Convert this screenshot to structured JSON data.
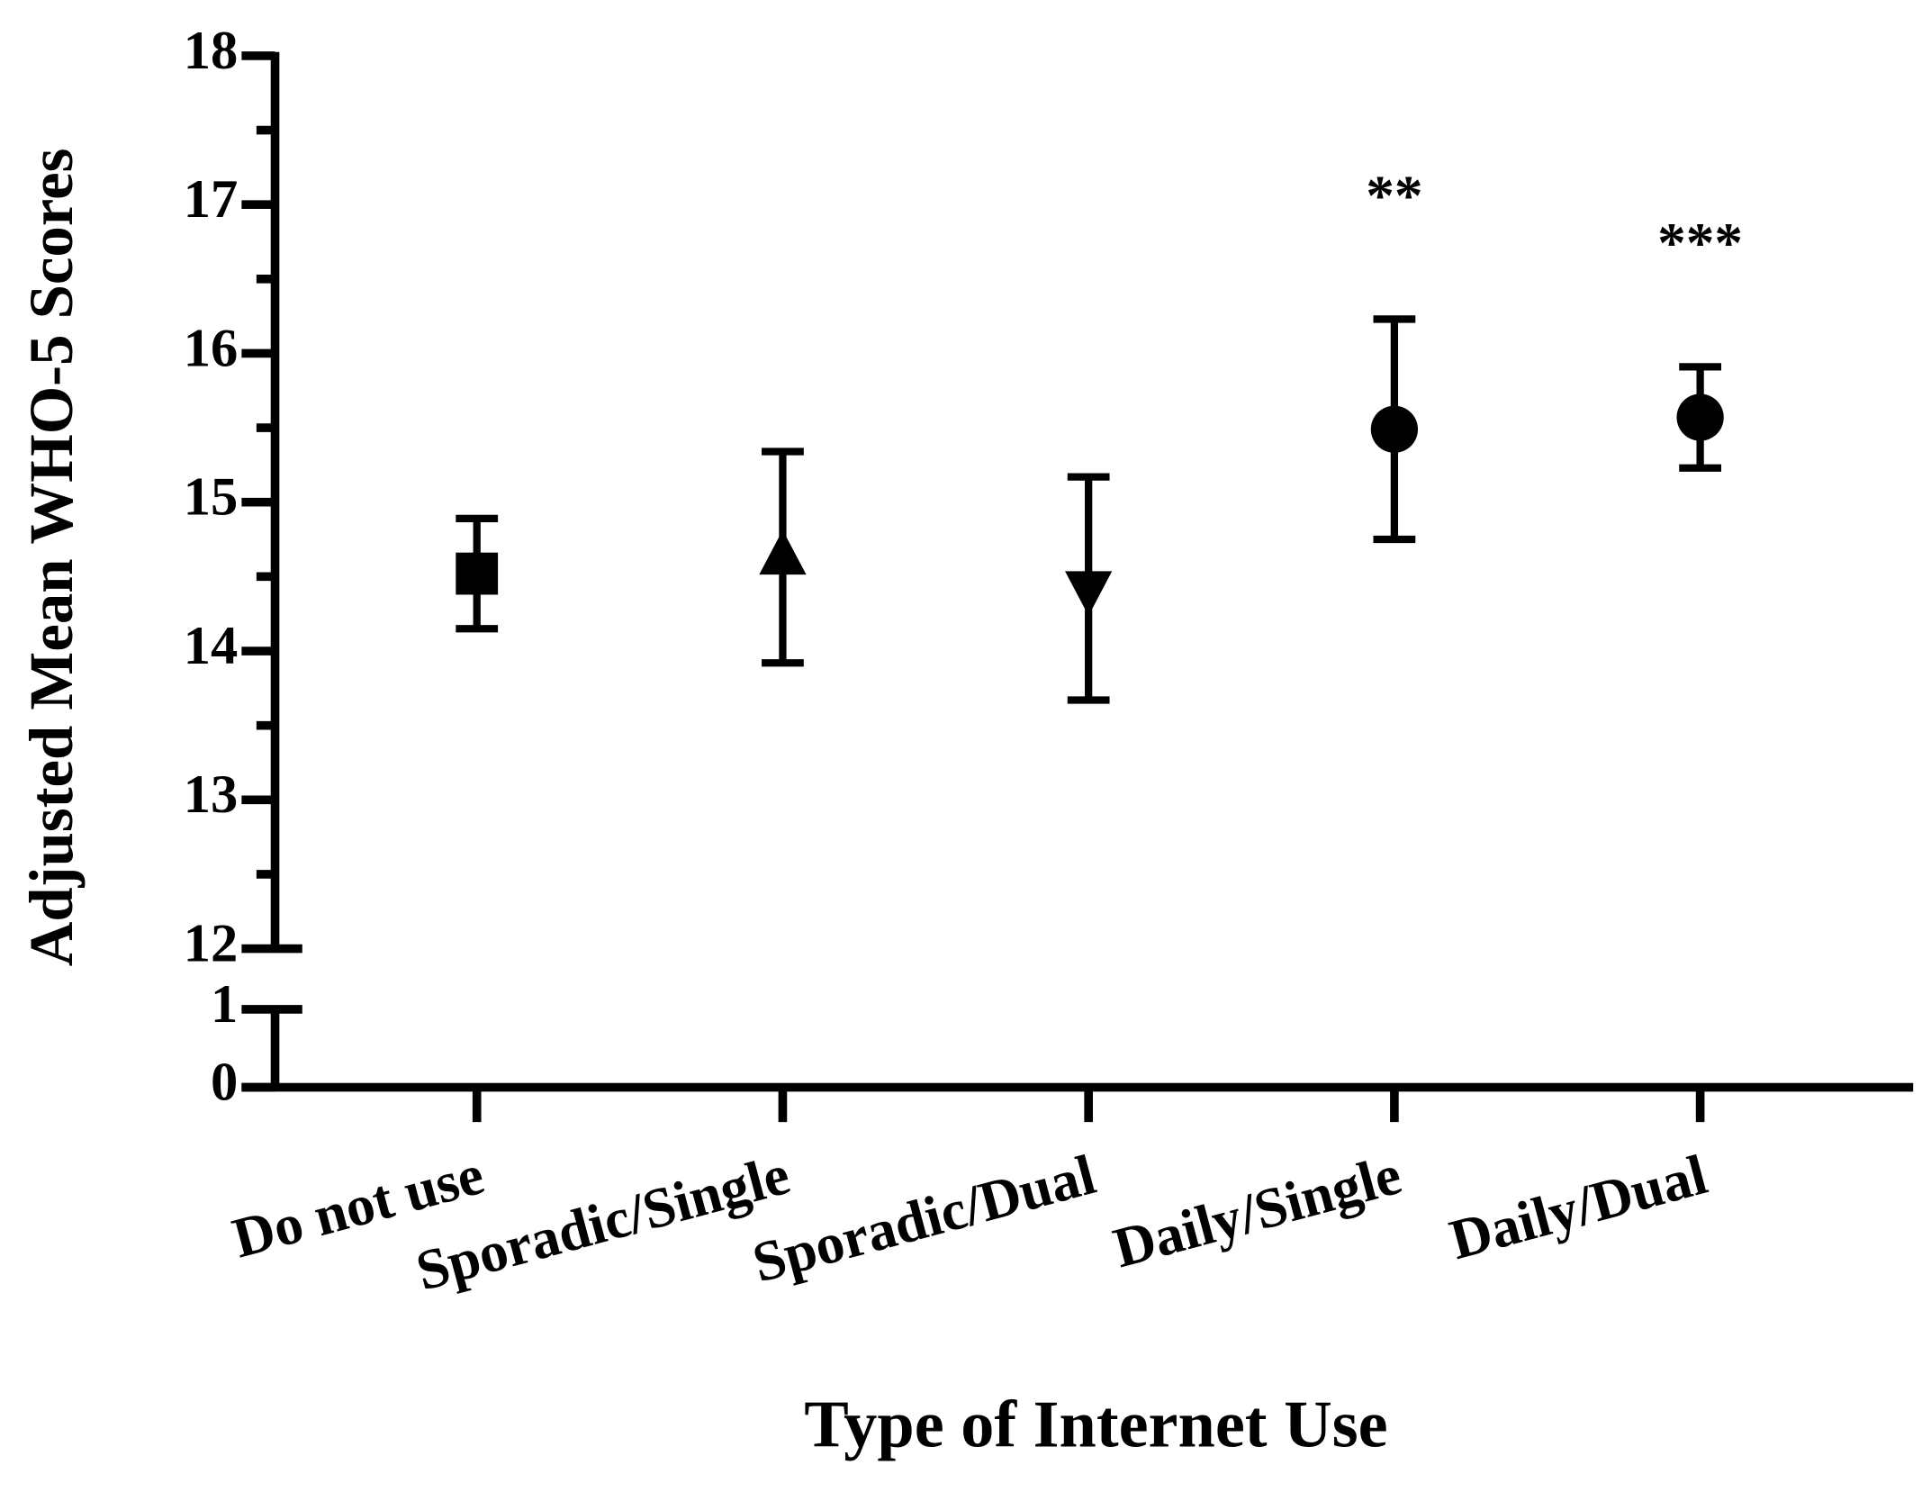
{
  "chart_data": {
    "type": "errorpoint",
    "xlabel": "Type of Internet Use",
    "ylabel": "Adjusted Mean WHO-5 Scores",
    "categories": [
      "Do not use",
      "Sporadic/Single",
      "Sporadic/Dual",
      "Daily/Single",
      "Daily/Dual"
    ],
    "values": [
      14.52,
      14.63,
      14.42,
      15.49,
      15.57
    ],
    "errors": [
      0.37,
      0.71,
      0.75,
      0.74,
      0.34
    ],
    "markers": [
      "square",
      "triangle-up",
      "triangle-down",
      "circle",
      "circle"
    ],
    "annotations": [
      null,
      null,
      null,
      "**",
      "***"
    ],
    "color": "#000000",
    "ylim": [
      12,
      18
    ],
    "yticks": [
      12,
      13,
      14,
      15,
      16,
      17,
      18
    ],
    "yminorticks": [
      12.5,
      13.5,
      14.5,
      15.5,
      16.5,
      17.5
    ],
    "lower_ylim": [
      0,
      1
    ],
    "lower_yticks": [
      0,
      1
    ]
  }
}
